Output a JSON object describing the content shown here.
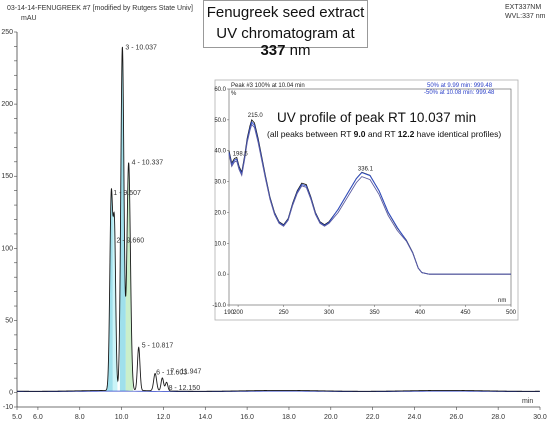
{
  "header": {
    "run_label": "03-14-14-FENUGREEK #7 [modified by Rutgers State Univ]",
    "y_unit": "mAU",
    "method_label": "EXT337NM",
    "wavelength_label": "WVL:337 nm"
  },
  "title": {
    "line1": "Fenugreek seed extract",
    "line2_prefix": "UV chromatogram at ",
    "line2_value": "337",
    "line2_suffix": " nm"
  },
  "inset": {
    "peak_label": "Peak #3   100% at 10.04 min",
    "legend_1": "50% at 9.99 min:  999.48",
    "legend_2": "-50% at 10.08 min:  999.48",
    "y_unit": "%",
    "x_unit": "nm",
    "caption_main": "UV profile of peak RT 10.037 min",
    "caption_sub_prefix": "(all peaks between RT ",
    "caption_sub_a": "9.0",
    "caption_sub_mid": " and RT ",
    "caption_sub_b": "12.2",
    "caption_sub_suffix": " have identical profiles)"
  },
  "chart_data": [
    {
      "type": "line",
      "title": "UV chromatogram at 337 nm",
      "xlabel": "min",
      "ylabel": "mAU",
      "xlim": [
        5.0,
        30.0
      ],
      "ylim": [
        -10,
        250
      ],
      "x_ticks": [
        "5.0",
        "6.0",
        "8.0",
        "10.0",
        "12.0",
        "14.0",
        "16.0",
        "18.0",
        "20.0",
        "22.0",
        "24.0",
        "26.0",
        "28.0",
        "30.0"
      ],
      "y_ticks": [
        "-10",
        "0",
        "10",
        "20",
        "30",
        "40",
        "50",
        "60",
        "70",
        "80",
        "90",
        "100",
        "110",
        "120",
        "130",
        "140",
        "150",
        "160",
        "170",
        "180",
        "190",
        "200",
        "210",
        "220",
        "230",
        "240",
        "250"
      ],
      "peaks": [
        {
          "label": "1 - 9.507",
          "rt": 9.507,
          "height": 135
        },
        {
          "label": "2 - 9.660",
          "rt": 9.66,
          "height": 107
        },
        {
          "label": "3 - 10.037",
          "rt": 10.037,
          "height": 238
        },
        {
          "label": "4 - 10.337",
          "rt": 10.337,
          "height": 158
        },
        {
          "label": "5 - 10.817",
          "rt": 10.817,
          "height": 30
        },
        {
          "label": "6 - 11.603",
          "rt": 11.603,
          "height": 12
        },
        {
          "label": "7 - 11.947",
          "rt": 11.947,
          "height": 9
        },
        {
          "label": "8 - 12.150",
          "rt": 12.15,
          "height": 6
        }
      ],
      "colors": {
        "trace": "#1a1a1a",
        "baseline": "#2a3fc8",
        "fill": "#7fd6e6"
      }
    },
    {
      "type": "line",
      "title": "UV profile of peak RT 10.037 min",
      "xlabel": "nm",
      "ylabel": "%",
      "xlim": [
        190,
        500
      ],
      "ylim": [
        -10,
        60
      ],
      "x_ticks": [
        "190",
        "200",
        "250",
        "300",
        "350",
        "400",
        "450",
        "500"
      ],
      "y_ticks": [
        "-10.0",
        "0.0",
        "10.0",
        "20.0",
        "30.0",
        "40.0",
        "50.0",
        "60.0"
      ],
      "annotations": [
        {
          "text": "198.5",
          "x": 198.5,
          "y": 37.8
        },
        {
          "text": "215.0",
          "x": 215.0,
          "y": 50.2
        },
        {
          "text": "336.1",
          "x": 336.1,
          "y": 33.0
        }
      ],
      "series": [
        {
          "values_at": "50% at 9.99 min",
          "color": "#1a1a1a"
        },
        {
          "values_at": "100% at 10.04 min",
          "color": "#3050d0"
        },
        {
          "values_at": "-50% at 10.08 min",
          "color": "#5a5aa0"
        }
      ],
      "points": [
        [
          190,
          40
        ],
        [
          193,
          36
        ],
        [
          196,
          37.5
        ],
        [
          198.5,
          37.8
        ],
        [
          201,
          35
        ],
        [
          204,
          33
        ],
        [
          207,
          38
        ],
        [
          210,
          44
        ],
        [
          213,
          48
        ],
        [
          215,
          50
        ],
        [
          218,
          49
        ],
        [
          222,
          44
        ],
        [
          226,
          38
        ],
        [
          230,
          32
        ],
        [
          235,
          25
        ],
        [
          240,
          20
        ],
        [
          245,
          17
        ],
        [
          250,
          16
        ],
        [
          255,
          18
        ],
        [
          260,
          23
        ],
        [
          265,
          27
        ],
        [
          270,
          29.5
        ],
        [
          275,
          29
        ],
        [
          280,
          25
        ],
        [
          285,
          20
        ],
        [
          290,
          17
        ],
        [
          295,
          16
        ],
        [
          300,
          17
        ],
        [
          310,
          21
        ],
        [
          320,
          26
        ],
        [
          330,
          31
        ],
        [
          336,
          33
        ],
        [
          345,
          32
        ],
        [
          355,
          27
        ],
        [
          365,
          20
        ],
        [
          375,
          15
        ],
        [
          385,
          11
        ],
        [
          392,
          7
        ],
        [
          398,
          2
        ],
        [
          402,
          0.5
        ],
        [
          410,
          0
        ],
        [
          450,
          0
        ],
        [
          500,
          0
        ]
      ]
    }
  ]
}
